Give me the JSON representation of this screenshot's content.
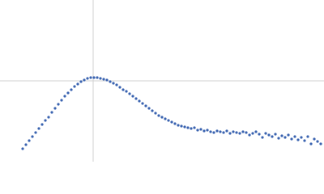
{
  "chart_data": {
    "type": "scatter",
    "color": "#3a63b0",
    "xlim": [
      0,
      400
    ],
    "ylim": [
      0,
      200
    ],
    "hline": 100,
    "vline": 115,
    "refline_color": "#d0d0d0",
    "x": [
      28,
      32,
      36,
      40,
      44,
      48,
      52,
      56,
      60,
      64,
      68,
      72,
      76,
      80,
      84,
      88,
      92,
      96,
      100,
      104,
      108,
      112,
      116,
      120,
      124,
      128,
      132,
      136,
      140,
      144,
      148,
      152,
      156,
      160,
      164,
      168,
      172,
      176,
      180,
      184,
      188,
      192,
      196,
      200,
      204,
      208,
      212,
      216,
      220,
      224,
      228,
      232,
      236,
      240,
      244,
      248,
      252,
      256,
      260,
      264,
      268,
      272,
      276,
      280,
      284,
      288,
      292,
      296,
      300,
      304,
      308,
      312,
      316,
      320,
      324,
      328,
      332,
      336,
      340,
      344,
      348,
      352,
      356,
      360,
      364,
      368,
      372,
      376,
      380,
      384,
      388,
      392,
      396
    ],
    "values": [
      16,
      21,
      26,
      31,
      36,
      41,
      46,
      51,
      55,
      61,
      66,
      71,
      76,
      81,
      85,
      89,
      93,
      96,
      99,
      101,
      103,
      104,
      104,
      104,
      103,
      102,
      101,
      99,
      97,
      95,
      92,
      89,
      87,
      84,
      81,
      78,
      75,
      72,
      69,
      66,
      63,
      60,
      57,
      55,
      53,
      51,
      49,
      47,
      45,
      44,
      43,
      42,
      41,
      42,
      39,
      40,
      38,
      39,
      37,
      36,
      38,
      37,
      36,
      38,
      35,
      37,
      36,
      35,
      37,
      36,
      33,
      35,
      37,
      34,
      30,
      35,
      33,
      31,
      34,
      29,
      32,
      30,
      33,
      28,
      31,
      27,
      30,
      26,
      31,
      22,
      28,
      25,
      22
    ]
  }
}
